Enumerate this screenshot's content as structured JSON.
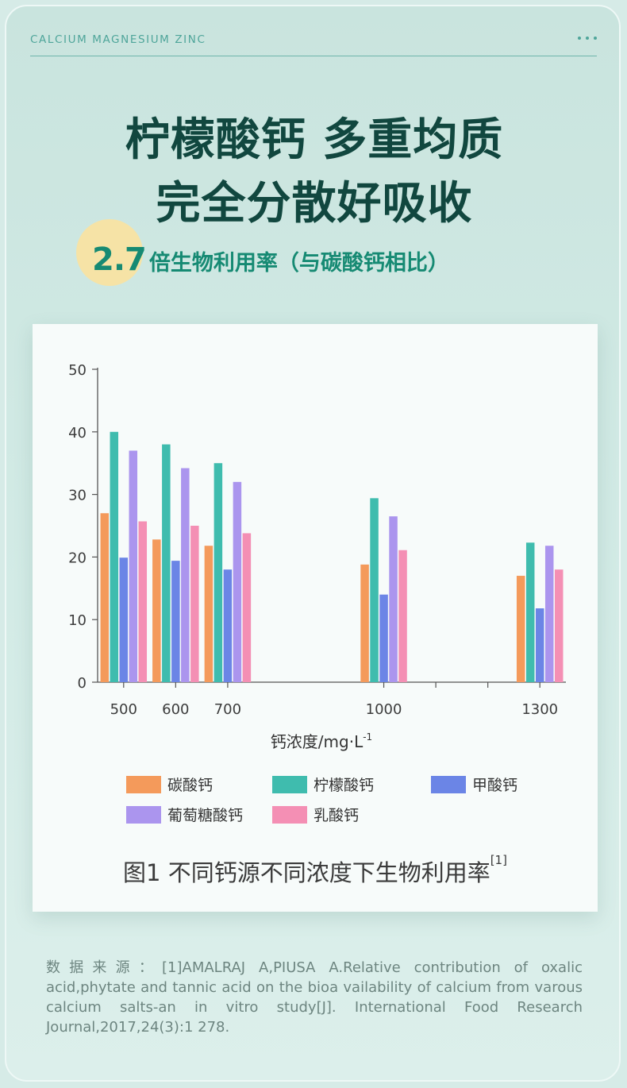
{
  "header": {
    "brand": "CALCIUM MAGNESIUM ZINC"
  },
  "headline": {
    "line1": "柠檬酸钙 多重均质",
    "line2": "完全分散好吸收"
  },
  "subline": {
    "multiplier": "2.7",
    "text": "倍生物利用率（与碳酸钙相比）"
  },
  "colors": {
    "headline": "#11473f",
    "accent": "#168a73",
    "badge": "#f6e3a6",
    "background": "#d3ebe6"
  },
  "chart_data": {
    "type": "bar",
    "title": "图1 不同钙源不同浓度下生物利用率",
    "title_ref": "[1]",
    "xlabel": "钙浓度/mg·L",
    "xlabel_sup": "-1",
    "ylabel": "",
    "ylim": [
      0,
      50
    ],
    "yticks": [
      0,
      10,
      20,
      30,
      40,
      50
    ],
    "categories": [
      "500",
      "600",
      "700",
      "1000",
      "1300"
    ],
    "category_positions": [
      500,
      600,
      700,
      1000,
      1300
    ],
    "x_extra_ticks": [
      1100,
      1200
    ],
    "xlim": [
      450,
      1350
    ],
    "series": [
      {
        "name": "碳酸钙",
        "color": "#f49a5b",
        "values": [
          27,
          22.8,
          21.8,
          18.8,
          17
        ]
      },
      {
        "name": "柠檬酸钙",
        "color": "#3fbcae",
        "values": [
          40,
          38,
          35,
          29.4,
          22.3
        ]
      },
      {
        "name": "甲酸钙",
        "color": "#6b85e6",
        "values": [
          19.9,
          19.4,
          18,
          14,
          11.8
        ]
      },
      {
        "name": "葡萄糖酸钙",
        "color": "#ab95ee",
        "values": [
          37,
          34.2,
          32,
          26.5,
          21.8
        ]
      },
      {
        "name": "乳酸钙",
        "color": "#f48fb4",
        "values": [
          25.7,
          25,
          23.8,
          21.1,
          18
        ]
      }
    ],
    "grid": false,
    "legend_position": "bottom"
  },
  "source": {
    "text": "数据来源：[1]AMALRAJ A,PIUSA A.Relative contribution of oxalic acid,phytate and tannic acid on the bioa vailability of calcium from varous calcium salts-an in vitro study[J]. International Food Research Journal,2017,24(3):1 278."
  }
}
